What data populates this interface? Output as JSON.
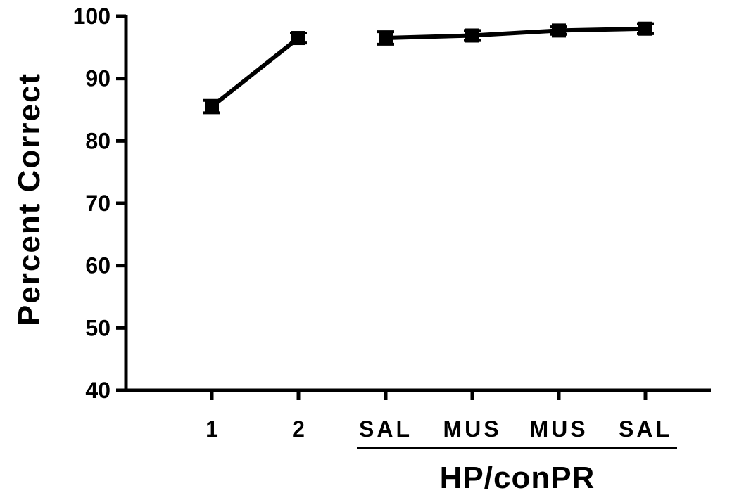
{
  "chart_data": {
    "type": "line",
    "title": "",
    "xlabel": "",
    "ylabel": "Percent Correct",
    "ylim": [
      40,
      100
    ],
    "yticks": [
      40,
      50,
      60,
      70,
      80,
      90,
      100
    ],
    "categories": [
      "1",
      "2",
      "SAL",
      "MUS",
      "MUS",
      "SAL"
    ],
    "group_label": "HP/conPR",
    "grid": false,
    "legend": "none",
    "series": [
      {
        "values": [
          85.5,
          96.5,
          null,
          null,
          null,
          null
        ],
        "errors": [
          1.0,
          0.8,
          null,
          null,
          null,
          null
        ]
      },
      {
        "values": [
          null,
          null,
          96.5,
          96.9,
          97.7,
          98.0
        ],
        "errors": [
          null,
          null,
          1.0,
          0.8,
          0.6,
          0.8
        ]
      }
    ],
    "color": "#000000"
  }
}
